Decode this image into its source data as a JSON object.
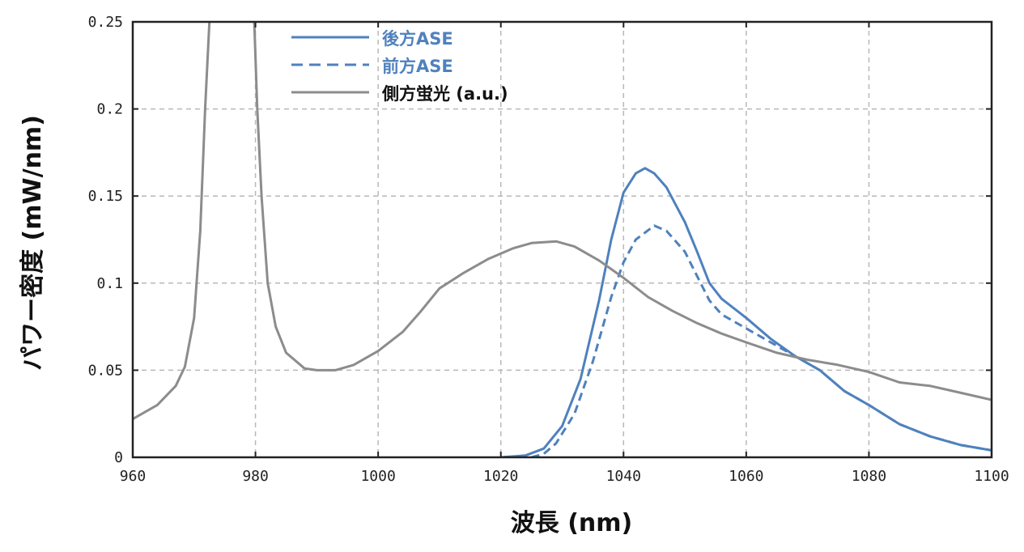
{
  "chart_data": {
    "type": "line",
    "title": "",
    "xlabel": "波長 (nm)",
    "ylabel": "パワー密度 (mW/nm)",
    "xlim": [
      960,
      1100
    ],
    "ylim": [
      0,
      0.25
    ],
    "xticks": [
      960,
      980,
      1000,
      1020,
      1040,
      1060,
      1080,
      1100
    ],
    "xtick_labels": [
      "960",
      "980",
      "1000",
      "1020",
      "1040",
      "1060",
      "1080",
      "1100"
    ],
    "yticks": [
      0,
      0.05,
      0.1,
      0.15,
      0.2,
      0.25
    ],
    "ytick_labels": [
      "0",
      "0.05",
      "0.1",
      "0.15",
      "0.2",
      "0.25"
    ],
    "grid": true,
    "legend_position": "upper-left-inside",
    "series": [
      {
        "name": "後方ASE",
        "color": "#4f81bd",
        "style": "solid",
        "x": [
          1020,
          1024,
          1027,
          1030,
          1033,
          1036,
          1038,
          1040,
          1042,
          1043.5,
          1045,
          1047,
          1050,
          1052,
          1054,
          1056,
          1060,
          1064,
          1068,
          1072,
          1076,
          1080,
          1085,
          1090,
          1095,
          1100
        ],
        "values": [
          0,
          0.001,
          0.005,
          0.018,
          0.045,
          0.09,
          0.125,
          0.152,
          0.163,
          0.166,
          0.163,
          0.155,
          0.135,
          0.118,
          0.1,
          0.091,
          0.08,
          0.068,
          0.058,
          0.05,
          0.038,
          0.03,
          0.019,
          0.012,
          0.007,
          0.004
        ]
      },
      {
        "name": "前方ASE",
        "color": "#4f81bd",
        "style": "dashed",
        "x": [
          1025,
          1027,
          1029,
          1032,
          1035,
          1038,
          1040,
          1042,
          1045,
          1047,
          1050,
          1052,
          1054,
          1056,
          1060,
          1064,
          1068,
          1072,
          1076,
          1080,
          1085,
          1090,
          1095,
          1100
        ],
        "values": [
          0,
          0.002,
          0.008,
          0.025,
          0.055,
          0.092,
          0.112,
          0.125,
          0.133,
          0.13,
          0.118,
          0.104,
          0.09,
          0.082,
          0.074,
          0.066,
          0.058,
          0.05,
          0.038,
          0.03,
          0.019,
          0.012,
          0.007,
          0.004
        ]
      },
      {
        "name": "側方蛍光 (a.u.)",
        "color": "#8c8c8c",
        "style": "solid",
        "x": [
          960,
          964,
          967,
          968.5,
          970,
          971,
          971.8,
          972.5,
          973,
          974,
          978.5,
          979.3,
          979.8,
          980.3,
          981,
          982,
          983.3,
          985,
          988,
          990,
          993,
          996,
          1000,
          1004,
          1007,
          1010,
          1014,
          1018,
          1022,
          1025,
          1029,
          1032,
          1036,
          1040,
          1044,
          1048,
          1052,
          1056,
          1060,
          1065,
          1070,
          1075,
          1080,
          1085,
          1090,
          1095,
          1100
        ],
        "values": [
          0.022,
          0.03,
          0.041,
          0.052,
          0.08,
          0.13,
          0.2,
          0.25,
          0.28,
          0.32,
          0.32,
          0.28,
          0.25,
          0.2,
          0.15,
          0.1,
          0.075,
          0.06,
          0.051,
          0.05,
          0.05,
          0.053,
          0.061,
          0.072,
          0.084,
          0.097,
          0.106,
          0.114,
          0.12,
          0.123,
          0.124,
          0.121,
          0.113,
          0.103,
          0.092,
          0.084,
          0.077,
          0.071,
          0.066,
          0.06,
          0.056,
          0.053,
          0.049,
          0.043,
          0.041,
          0.037,
          0.033
        ]
      }
    ]
  },
  "legend": {
    "items": [
      {
        "label": "後方ASE",
        "color": "#4f81bd"
      },
      {
        "label": "前方ASE",
        "color": "#4f81bd"
      },
      {
        "label": "側方蛍光 (a.u.)",
        "color": "#111111"
      }
    ]
  },
  "axes": {
    "xlabel": "波長 (nm)",
    "ylabel": "パワー密度 (mW/nm)"
  }
}
